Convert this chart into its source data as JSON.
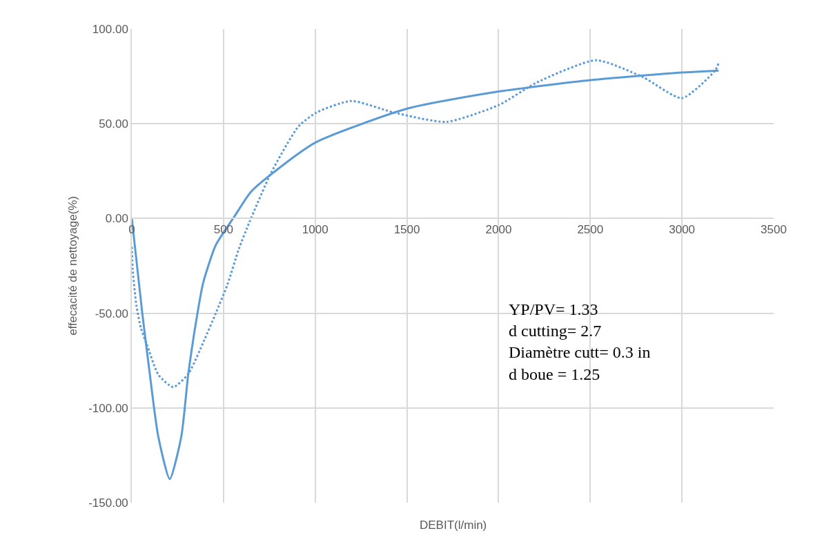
{
  "chart_data": {
    "type": "line",
    "xlabel": "DEBIT(l/min)",
    "ylabel": "effecacité de nettoyage(%)",
    "xlim": [
      0,
      3500
    ],
    "xticks": [
      0,
      500,
      1000,
      1500,
      2000,
      2500,
      3000,
      3500
    ],
    "ylim": [
      -150,
      100
    ],
    "yticks": [
      {
        "value": -150,
        "label": "-150.00"
      },
      {
        "value": -100,
        "label": "-100.00"
      },
      {
        "value": -50,
        "label": "-50.00"
      },
      {
        "value": 0,
        "label": "0.00"
      },
      {
        "value": 50,
        "label": "50.00"
      },
      {
        "value": 100,
        "label": "100.00"
      }
    ],
    "grid": true,
    "marker": "none",
    "series": [
      {
        "color": "#5b9bd5",
        "line_style": "solid",
        "x": [
          0,
          57,
          94,
          144,
          207,
          270,
          308,
          358,
          389,
          458,
          559,
          649,
          769,
          1000,
          1502,
          2000,
          2502,
          3000,
          3200
        ],
        "values": [
          0,
          -50,
          -79,
          -115,
          -137.5,
          -115,
          -82,
          -50,
          -34,
          -14,
          1,
          14,
          24,
          40,
          58,
          67,
          73,
          77,
          78
        ]
      },
      {
        "color": "#5b9bd5",
        "line_style": "dotted",
        "x": [
          0,
          5,
          25,
          50,
          82,
          145,
          226,
          308,
          396,
          458,
          521,
          584,
          641,
          759,
          908,
          1008,
          1197,
          1426,
          1715,
          2004,
          2203,
          2532,
          2789,
          3000,
          3180,
          3200
        ],
        "values": [
          -15,
          -27,
          -46,
          -58,
          -66.5,
          -82.5,
          -89,
          -82,
          -64,
          -50,
          -35,
          -16,
          -2,
          24,
          48.5,
          56,
          62,
          56,
          51,
          60,
          71.5,
          83.5,
          74.5,
          63.5,
          78,
          82
        ]
      }
    ],
    "annotations": [
      "YP/PV= 1.33\nd cutting= 2.7\nDiamètre cutt= 0.3 in\nd boue = 1.25"
    ]
  }
}
